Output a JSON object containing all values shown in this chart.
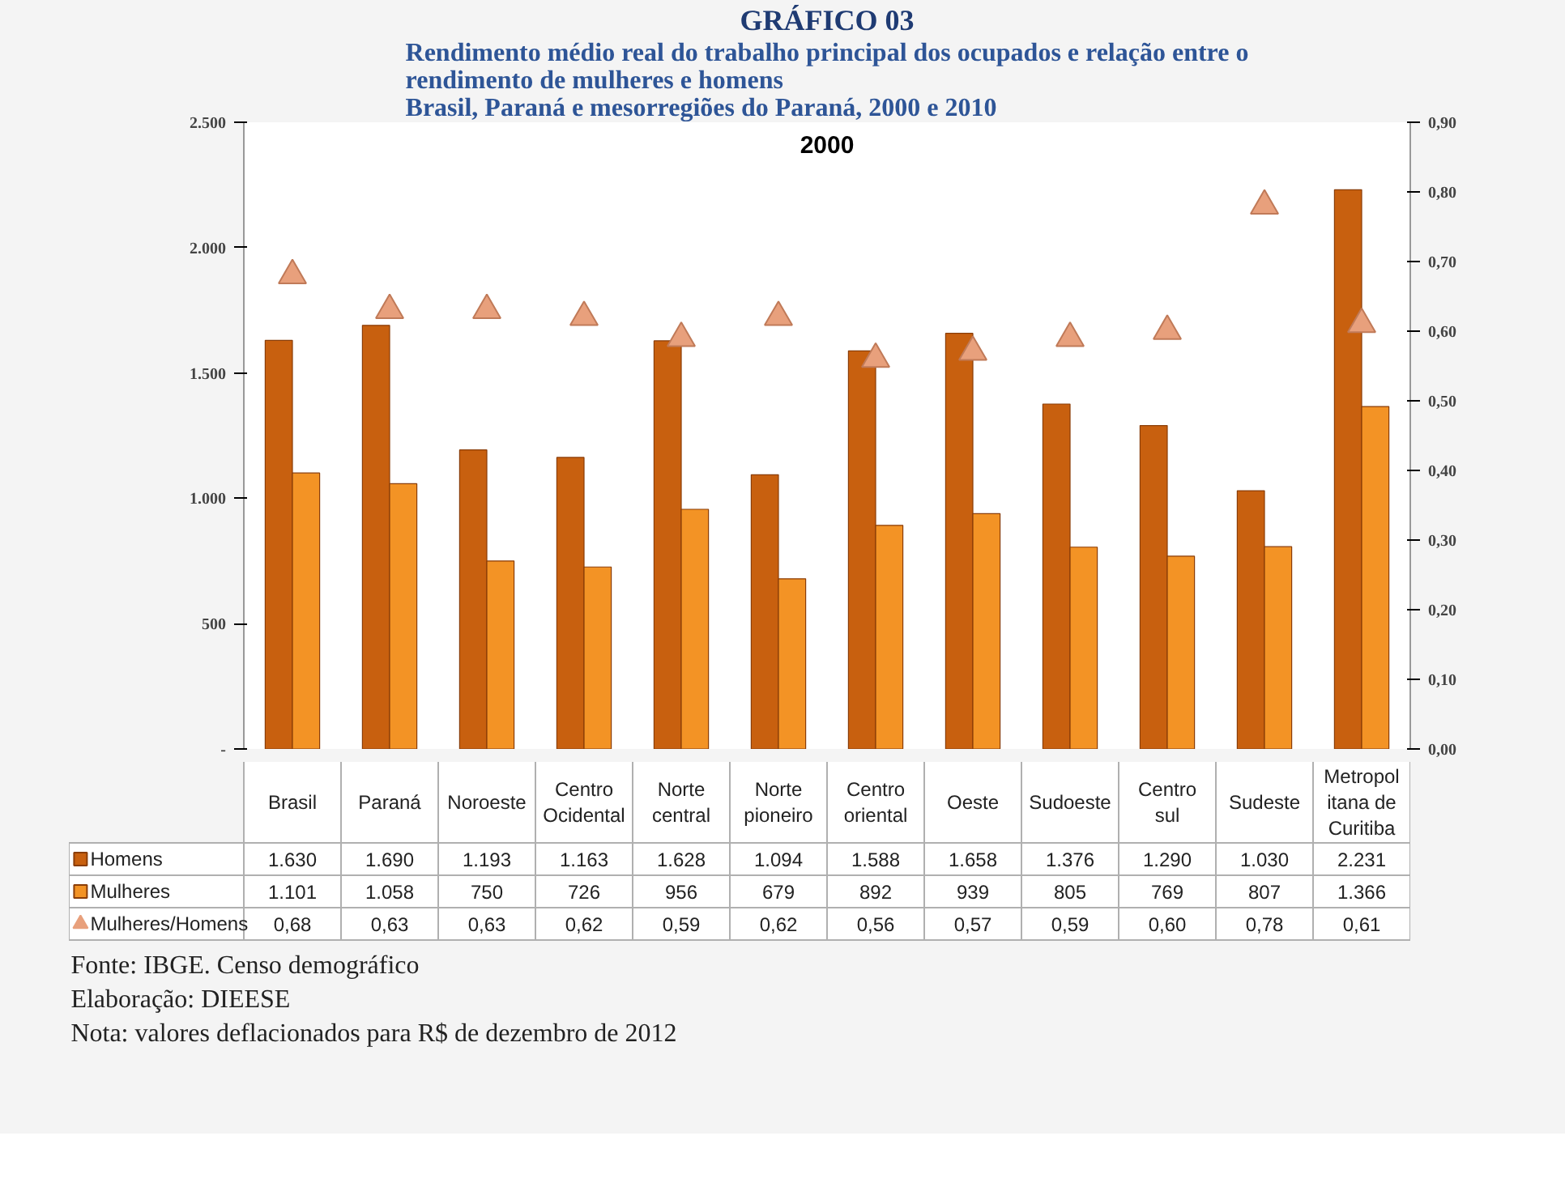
{
  "chart_data": {
    "type": "bar",
    "title": "GRÁFICO 03",
    "subtitle": "Rendimento médio real do trabalho principal dos ocupados e relação entre o\nrendimento de mulheres e homens\nBrasil, Paraná e mesorregiões do Paraná, 2000 e 2010",
    "categories": [
      "Brasil",
      "Paraná",
      "Noroeste",
      "Centro Ocidental",
      "Norte central",
      "Norte pioneiro",
      "Centro oriental",
      "Oeste",
      "Sudoeste",
      "Centro sul",
      "Sudeste",
      "Metropolitana de Curitiba"
    ],
    "series": [
      {
        "name": "Homens",
        "color": "#c8600f",
        "values": [
          1630,
          1690,
          1193,
          1163,
          1628,
          1094,
          1588,
          1658,
          1376,
          1290,
          1030,
          2231
        ],
        "value_labels": [
          "1.630",
          "1.690",
          "1.193",
          "1.163",
          "1.628",
          "1.094",
          "1.588",
          "1.658",
          "1.376",
          "1.290",
          "1.030",
          "2.231"
        ]
      },
      {
        "name": "Mulheres",
        "color": "#f39325",
        "values": [
          1101,
          1058,
          750,
          726,
          956,
          679,
          892,
          939,
          805,
          769,
          807,
          1366
        ],
        "value_labels": [
          "1.101",
          "1.058",
          "750",
          "726",
          "956",
          "679",
          "892",
          "939",
          "805",
          "769",
          "807",
          "1.366"
        ]
      },
      {
        "name": "Mulheres/Homens",
        "type": "scatter",
        "axis": "y2",
        "marker": "triangle",
        "color": "#e8a07c",
        "values": [
          0.68,
          0.63,
          0.63,
          0.62,
          0.59,
          0.62,
          0.56,
          0.57,
          0.59,
          0.6,
          0.78,
          0.61
        ],
        "value_labels": [
          "0,68",
          "0,63",
          "0,63",
          "0,62",
          "0,59",
          "0,62",
          "0,56",
          "0,57",
          "0,59",
          "0,60",
          "0,78",
          "0,61"
        ]
      }
    ],
    "ylim": [
      0,
      2500
    ],
    "yticks": [
      {
        "value": 0,
        "label": "-"
      },
      {
        "value": 500,
        "label": "500"
      },
      {
        "value": 1000,
        "label": "1.000"
      },
      {
        "value": 1500,
        "label": "1.500"
      },
      {
        "value": 2000,
        "label": "2.000"
      },
      {
        "value": 2500,
        "label": "2.500"
      }
    ],
    "y2lim": [
      0,
      0.9
    ],
    "y2ticks": [
      {
        "value": 0,
        "label": "0,00"
      },
      {
        "value": 0.1,
        "label": "0,10"
      },
      {
        "value": 0.2,
        "label": "0,20"
      },
      {
        "value": 0.3,
        "label": "0,30"
      },
      {
        "value": 0.4,
        "label": "0,40"
      },
      {
        "value": 0.5,
        "label": "0,50"
      },
      {
        "value": 0.6,
        "label": "0,60"
      },
      {
        "value": 0.7,
        "label": "0,70"
      },
      {
        "value": 0.8,
        "label": "0,80"
      },
      {
        "value": 0.9,
        "label": "0,90"
      }
    ],
    "legend": "bottom",
    "grid": false,
    "annotations": [
      "2000",
      "Fonte: IBGE. Censo demográfico",
      "Elaboração: DIEESE",
      "Nota: valores deflacionados para R$ de dezembro de 2012"
    ]
  }
}
